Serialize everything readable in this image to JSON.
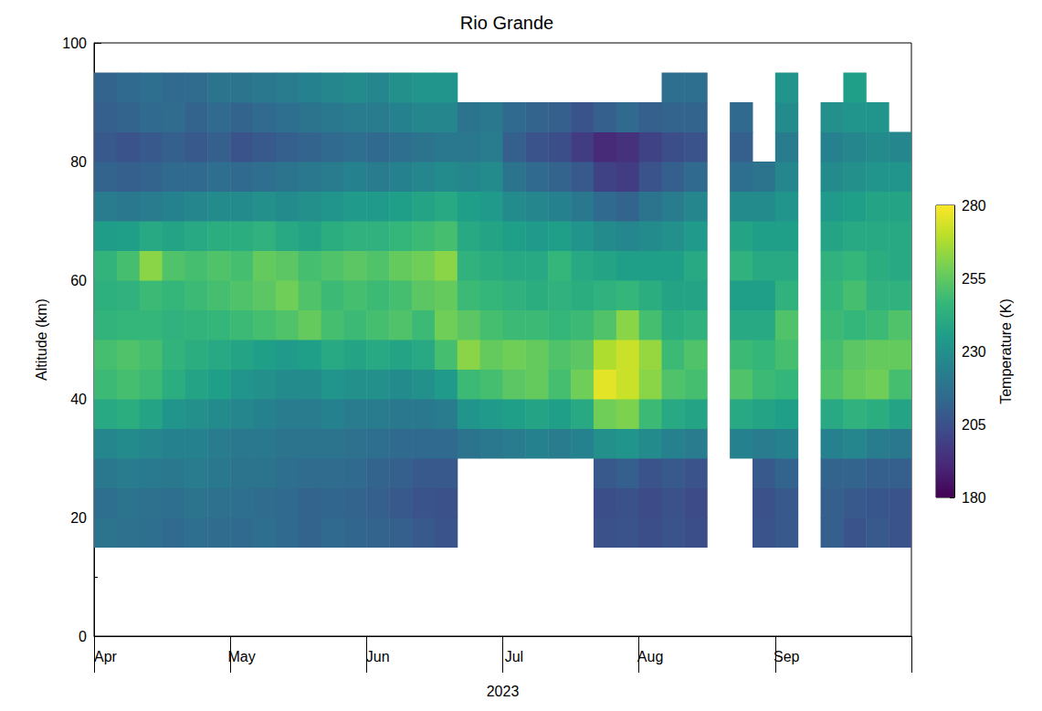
{
  "chart_data": {
    "type": "heatmap",
    "title": "Rio Grande",
    "xlabel": "2023",
    "ylabel": "Altitude (km)",
    "categories": [
      "Apr",
      null,
      null,
      null,
      null,
      null,
      "May",
      null,
      null,
      null,
      null,
      null,
      "Jun",
      null,
      null,
      null,
      null,
      null,
      "Jul",
      null,
      null,
      null,
      null,
      null,
      "Aug",
      null,
      null,
      null,
      null,
      null,
      "Sep",
      null,
      null,
      null,
      null,
      null
    ],
    "y": [
      17.5,
      22.5,
      27.5,
      32.5,
      37.5,
      42.5,
      47.5,
      52.5,
      57.5,
      62.5,
      67.5,
      72.5,
      77.5,
      82.5,
      87.5,
      92.5
    ],
    "values": [
      [
        218,
        216,
        220,
        226,
        240,
        248,
        250,
        245,
        243,
        245,
        235,
        222,
        212,
        208,
        210,
        212
      ],
      [
        217,
        218,
        222,
        228,
        242,
        250,
        252,
        246,
        244,
        250,
        236,
        220,
        210,
        206,
        212,
        214
      ],
      [
        216,
        217,
        221,
        226,
        238,
        248,
        250,
        246,
        248,
        262,
        240,
        222,
        212,
        208,
        214,
        216
      ],
      [
        214,
        216,
        220,
        224,
        232,
        242,
        245,
        244,
        246,
        252,
        238,
        224,
        214,
        210,
        215,
        214
      ],
      [
        216,
        218,
        222,
        224,
        230,
        238,
        242,
        245,
        248,
        250,
        240,
        226,
        214,
        208,
        212,
        215
      ],
      [
        215,
        217,
        220,
        222,
        228,
        236,
        240,
        246,
        250,
        252,
        242,
        228,
        216,
        210,
        214,
        218
      ],
      [
        214,
        216,
        218,
        220,
        226,
        232,
        238,
        248,
        252,
        250,
        242,
        228,
        214,
        206,
        212,
        218
      ],
      [
        216,
        215,
        218,
        220,
        224,
        230,
        236,
        250,
        254,
        256,
        244,
        230,
        216,
        208,
        214,
        220
      ],
      [
        214,
        214,
        216,
        218,
        222,
        228,
        234,
        252,
        258,
        254,
        240,
        228,
        218,
        210,
        216,
        222
      ],
      [
        212,
        212,
        215,
        218,
        222,
        228,
        236,
        256,
        252,
        250,
        238,
        230,
        220,
        212,
        218,
        224
      ],
      [
        214,
        213,
        215,
        218,
        224,
        232,
        240,
        250,
        248,
        252,
        242,
        232,
        222,
        214,
        220,
        226
      ],
      [
        213,
        212,
        214,
        217,
        222,
        230,
        238,
        248,
        250,
        254,
        244,
        234,
        224,
        216,
        222,
        228
      ],
      [
        212,
        210,
        212,
        216,
        222,
        230,
        240,
        250,
        248,
        252,
        244,
        234,
        222,
        214,
        222,
        226
      ],
      [
        210,
        208,
        210,
        214,
        220,
        228,
        238,
        252,
        250,
        256,
        246,
        236,
        224,
        216,
        224,
        230
      ],
      [
        208,
        206,
        208,
        214,
        220,
        230,
        240,
        248,
        254,
        258,
        248,
        238,
        226,
        218,
        226,
        232
      ],
      [
        206,
        205,
        208,
        214,
        222,
        234,
        250,
        258,
        256,
        262,
        250,
        240,
        228,
        220,
        226,
        232
      ],
      [
        null,
        null,
        null,
        218,
        232,
        248,
        262,
        254,
        248,
        244,
        240,
        236,
        226,
        220,
        218,
        null
      ],
      [
        null,
        null,
        null,
        220,
        234,
        250,
        256,
        250,
        246,
        242,
        238,
        234,
        228,
        222,
        220,
        null
      ],
      [
        null,
        null,
        null,
        222,
        236,
        254,
        258,
        248,
        244,
        240,
        236,
        228,
        218,
        210,
        214,
        null
      ],
      [
        null,
        null,
        null,
        224,
        238,
        256,
        256,
        248,
        242,
        240,
        234,
        226,
        214,
        206,
        212,
        null
      ],
      [
        null,
        null,
        null,
        222,
        236,
        250,
        252,
        246,
        244,
        246,
        236,
        224,
        212,
        204,
        210,
        null
      ],
      [
        null,
        null,
        null,
        224,
        240,
        258,
        254,
        248,
        242,
        240,
        232,
        220,
        208,
        198,
        206,
        null
      ],
      [
        205,
        204,
        208,
        230,
        258,
        276,
        268,
        252,
        244,
        238,
        228,
        214,
        200,
        192,
        210,
        null
      ],
      [
        206,
        205,
        210,
        232,
        260,
        272,
        272,
        262,
        246,
        236,
        226,
        212,
        198,
        194,
        214,
        null
      ],
      [
        204,
        203,
        206,
        228,
        248,
        262,
        264,
        250,
        242,
        236,
        228,
        218,
        206,
        200,
        210,
        null
      ],
      [
        206,
        205,
        208,
        224,
        240,
        252,
        248,
        242,
        238,
        236,
        230,
        222,
        210,
        204,
        212,
        216
      ],
      [
        204,
        203,
        206,
        222,
        238,
        250,
        252,
        244,
        238,
        240,
        234,
        226,
        214,
        206,
        212,
        216
      ],
      [
        null,
        null,
        null,
        null,
        null,
        null,
        null,
        null,
        null,
        null,
        null,
        null,
        null,
        null,
        null,
        null
      ],
      [
        null,
        null,
        null,
        224,
        240,
        252,
        248,
        240,
        236,
        244,
        238,
        228,
        216,
        210,
        214,
        null
      ],
      [
        206,
        205,
        208,
        222,
        238,
        248,
        246,
        240,
        236,
        240,
        236,
        228,
        218,
        null,
        null,
        null
      ],
      [
        208,
        208,
        212,
        224,
        236,
        246,
        250,
        252,
        244,
        240,
        236,
        232,
        226,
        222,
        228,
        232
      ],
      [
        null,
        null,
        null,
        null,
        null,
        null,
        null,
        null,
        null,
        null,
        null,
        null,
        null,
        null,
        null,
        null
      ],
      [
        210,
        210,
        212,
        224,
        240,
        252,
        250,
        248,
        246,
        244,
        238,
        234,
        228,
        224,
        230,
        null
      ],
      [
        206,
        208,
        212,
        226,
        244,
        256,
        254,
        246,
        250,
        246,
        240,
        236,
        230,
        226,
        232,
        236
      ],
      [
        208,
        207,
        210,
        222,
        242,
        258,
        256,
        248,
        244,
        242,
        240,
        238,
        232,
        228,
        232,
        null
      ],
      [
        206,
        206,
        210,
        220,
        238,
        250,
        256,
        252,
        244,
        240,
        240,
        238,
        232,
        226,
        null,
        null
      ]
    ],
    "ylim": [
      0,
      100
    ],
    "yticks": [
      0,
      20,
      40,
      60,
      80,
      100
    ],
    "colorbar": {
      "label": "Temperature (K)",
      "lim": [
        180,
        280
      ],
      "ticks": [
        180,
        205,
        230,
        255,
        280
      ],
      "colors": [
        "#440154",
        "#482878",
        "#3e4989",
        "#31688e",
        "#26828e",
        "#1f9e89",
        "#35b779",
        "#6ece58",
        "#b5de2b",
        "#fde725"
      ]
    }
  }
}
